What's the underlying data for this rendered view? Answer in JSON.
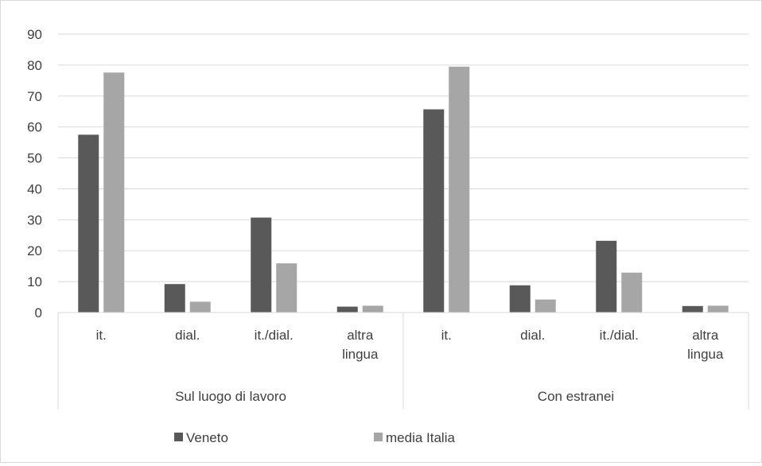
{
  "chart_data": {
    "type": "bar",
    "groups": [
      {
        "label": "Sul luogo di lavoro",
        "categories": [
          "it.",
          "dial.",
          "it./dial.",
          "altra lingua"
        ]
      },
      {
        "label": "Con estranei",
        "categories": [
          "it.",
          "dial.",
          "it./dial.",
          "altra lingua"
        ]
      }
    ],
    "categories": [
      "it.",
      "dial.",
      "it./dial.",
      "altra lingua",
      "it.",
      "dial.",
      "it./dial.",
      "altra lingua"
    ],
    "series": [
      {
        "name": "Veneto",
        "color": "#595959",
        "values": [
          57.5,
          9.2,
          30.7,
          1.9,
          65.7,
          8.8,
          23.2,
          2.1
        ]
      },
      {
        "name": "media Italia",
        "color": "#a6a6a6",
        "values": [
          77.6,
          3.5,
          15.9,
          2.2,
          79.5,
          4.2,
          12.9,
          2.2
        ]
      }
    ],
    "ylim": [
      0,
      90
    ],
    "yticks": [
      "0",
      "10",
      "20",
      "30",
      "40",
      "50",
      "60",
      "70",
      "80",
      "90"
    ],
    "grid": true,
    "legend_position": "bottom",
    "title": "",
    "xlabel": "",
    "ylabel": ""
  }
}
